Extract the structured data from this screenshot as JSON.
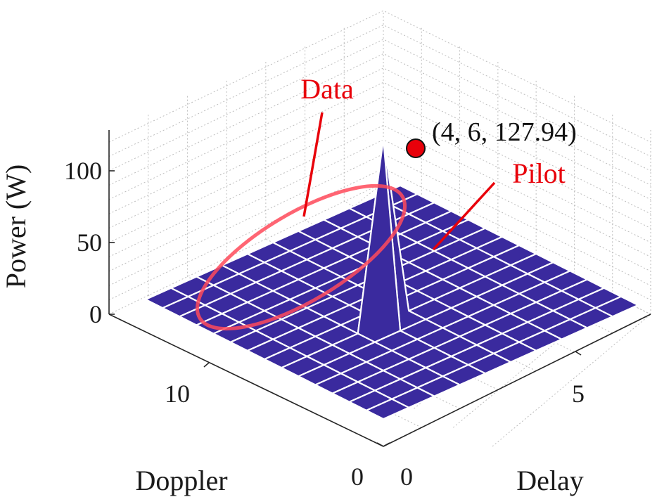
{
  "chart_data": {
    "type": "surface",
    "xlabel": "Doppler",
    "ylabel": "Delay",
    "zlabel": "Power (W)",
    "x_ticks": [
      "0",
      "10"
    ],
    "y_ticks": [
      "0",
      "5"
    ],
    "z_ticks": [
      "0",
      "50",
      "100"
    ],
    "grid_size": {
      "doppler_bins": 14,
      "delay_bins": 10
    },
    "surface_color": "#3a2a9e",
    "mesh_color": "#ffffff",
    "grid": true,
    "peak": {
      "delay": 4,
      "doppler": 6,
      "power": 127.94,
      "label": "(4, 6, 127.94)",
      "marker_color": "#e8000a"
    },
    "baseline_power": 0,
    "annotations": [
      {
        "text": "Data",
        "color": "#e8000a",
        "target": "data-region"
      },
      {
        "text": "Pilot",
        "color": "#e8000a",
        "target": "pilot-peak"
      }
    ]
  }
}
